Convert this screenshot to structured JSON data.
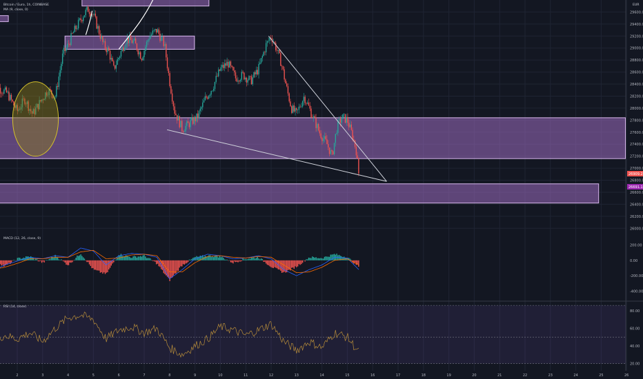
{
  "header": {
    "symbol": "Bitcoin / Euro, 1h, COINBASE",
    "ma_label": "MA (9, close, 0)",
    "currency": "EUR",
    "macd_label": "MACD (12, 26, close, 9)",
    "rsi_label": "RSI (14, close)"
  },
  "chart_data": [
    {
      "type": "candlestick",
      "title": "",
      "price_axis_ticks": [
        "29600.00",
        "29400.00",
        "29200.00",
        "29000.00",
        "28800.00",
        "28600.00",
        "28400.00",
        "28200.00",
        "28000.00",
        "27800.00",
        "27600.00",
        "27400.00",
        "27200.00",
        "27000.00",
        "26800.00",
        "26600.00",
        "26400.00",
        "26200.00",
        "26000.00"
      ],
      "ylim": [
        25900,
        29800
      ],
      "x_ticks": [
        "2",
        "3",
        "4",
        "5",
        "6",
        "7",
        "8",
        "9",
        "10",
        "11",
        "12",
        "13",
        "14",
        "15",
        "16",
        "17",
        "18",
        "19",
        "20",
        "21",
        "22",
        "23",
        "24",
        "25",
        "26"
      ],
      "last_price_label": "26909.27",
      "last_price": 26909.27,
      "secondary_price_label": "26691.13",
      "secondary_price": 26691.13,
      "colors": {
        "up": "#26a69a",
        "down": "#ef5350",
        "zone": "#9c6bbf",
        "ellipse": "#d4c12a",
        "trendline": "#d1d4dc"
      },
      "zones": [
        {
          "from_day": 4.55,
          "to_day": 9.55,
          "y_low": 29700,
          "y_high": 29880
        },
        {
          "from_day": 1.0,
          "to_day": 1.65,
          "y_low": 29440,
          "y_high": 29540
        },
        {
          "from_day": 3.88,
          "to_day": 8.98,
          "y_low": 28980,
          "y_high": 29200
        },
        {
          "from_day": 1.0,
          "to_day": 26.0,
          "y_low": 27160,
          "y_high": 27840
        },
        {
          "from_day": 1.0,
          "to_day": 24.9,
          "y_low": 26420,
          "y_high": 26740
        }
      ],
      "ellipse": {
        "center_day": 2.72,
        "center_price": 27820,
        "day_radius": 0.9,
        "price_radius": 620
      },
      "trendlines": [
        {
          "from_day": 7.9,
          "from_price": 27640,
          "to_day": 16.55,
          "to_price": 26780
        },
        {
          "from_day": 11.9,
          "from_price": 29200,
          "to_day": 16.55,
          "to_price": 26780
        }
      ],
      "series": [
        {
          "name": "",
          "anchors": [
            [
              1.0,
              28400
            ],
            [
              1.6,
              28250
            ],
            [
              2.0,
              27950
            ],
            [
              2.3,
              28150
            ],
            [
              2.6,
              27900
            ],
            [
              2.9,
              28100
            ],
            [
              3.2,
              28300
            ],
            [
              3.5,
              28200
            ],
            [
              3.8,
              28900
            ],
            [
              4.0,
              29050
            ],
            [
              4.2,
              29250
            ],
            [
              4.4,
              29400
            ],
            [
              4.6,
              29550
            ],
            [
              4.8,
              29650
            ],
            [
              5.0,
              29550
            ],
            [
              5.2,
              29300
            ],
            [
              5.4,
              29050
            ],
            [
              5.6,
              28950
            ],
            [
              5.8,
              28650
            ],
            [
              6.0,
              28850
            ],
            [
              6.3,
              29150
            ],
            [
              6.6,
              29100
            ],
            [
              6.9,
              28850
            ],
            [
              7.2,
              29200
            ],
            [
              7.5,
              29300
            ],
            [
              7.8,
              29050
            ],
            [
              8.0,
              28450
            ],
            [
              8.2,
              27950
            ],
            [
              8.5,
              27650
            ],
            [
              8.8,
              27750
            ],
            [
              9.1,
              27850
            ],
            [
              9.4,
              28150
            ],
            [
              9.7,
              28350
            ],
            [
              10.0,
              28650
            ],
            [
              10.3,
              28750
            ],
            [
              10.6,
              28500
            ],
            [
              10.9,
              28550
            ],
            [
              11.2,
              28450
            ],
            [
              11.5,
              28650
            ],
            [
              11.8,
              29050
            ],
            [
              12.0,
              29200
            ],
            [
              12.2,
              29000
            ],
            [
              12.4,
              28750
            ],
            [
              12.6,
              28350
            ],
            [
              12.8,
              28000
            ],
            [
              13.0,
              27900
            ],
            [
              13.3,
              28200
            ],
            [
              13.6,
              27900
            ],
            [
              13.9,
              27600
            ],
            [
              14.2,
              27400
            ],
            [
              14.4,
              27200
            ],
            [
              14.6,
              27700
            ],
            [
              14.8,
              27850
            ],
            [
              15.0,
              27800
            ],
            [
              15.2,
              27550
            ],
            [
              15.35,
              27300
            ],
            [
              15.45,
              26909
            ]
          ]
        }
      ]
    },
    {
      "type": "histogram",
      "title": "",
      "ticks": [
        "200.00",
        "0.00",
        "-200.00",
        "-400.00"
      ],
      "ylim": [
        -520,
        320
      ],
      "series": [
        {
          "name": "histogram",
          "anchors": [
            [
              1.0,
              40
            ],
            [
              1.5,
              -80
            ],
            [
              2.0,
              20
            ],
            [
              2.5,
              50
            ],
            [
              3.0,
              -30
            ],
            [
              3.5,
              60
            ],
            [
              4.0,
              -60
            ],
            [
              4.5,
              90
            ],
            [
              5.0,
              -120
            ],
            [
              5.5,
              -180
            ],
            [
              6.0,
              80
            ],
            [
              6.5,
              40
            ],
            [
              7.0,
              60
            ],
            [
              7.5,
              -40
            ],
            [
              8.0,
              -260
            ],
            [
              8.5,
              -60
            ],
            [
              9.0,
              40
            ],
            [
              9.5,
              60
            ],
            [
              10.0,
              50
            ],
            [
              10.5,
              -30
            ],
            [
              11.0,
              20
            ],
            [
              11.5,
              40
            ],
            [
              12.0,
              -80
            ],
            [
              12.5,
              -160
            ],
            [
              13.0,
              -80
            ],
            [
              13.5,
              40
            ],
            [
              14.0,
              30
            ],
            [
              14.5,
              80
            ],
            [
              15.0,
              40
            ],
            [
              15.45,
              -80
            ]
          ]
        },
        {
          "name": "macd",
          "anchors": [
            [
              1.0,
              -150
            ],
            [
              1.5,
              -60
            ],
            [
              2.0,
              -10
            ],
            [
              2.5,
              40
            ],
            [
              3.0,
              20
            ],
            [
              3.5,
              60
            ],
            [
              4.0,
              40
            ],
            [
              4.5,
              160
            ],
            [
              5.0,
              120
            ],
            [
              5.5,
              -60
            ],
            [
              6.0,
              60
            ],
            [
              6.5,
              90
            ],
            [
              7.0,
              80
            ],
            [
              7.5,
              40
            ],
            [
              8.0,
              -240
            ],
            [
              8.5,
              -120
            ],
            [
              9.0,
              20
            ],
            [
              9.5,
              80
            ],
            [
              10.0,
              60
            ],
            [
              10.5,
              20
            ],
            [
              11.0,
              30
            ],
            [
              11.5,
              60
            ],
            [
              12.0,
              20
            ],
            [
              12.5,
              -120
            ],
            [
              13.0,
              -200
            ],
            [
              13.5,
              -120
            ],
            [
              14.0,
              -60
            ],
            [
              14.5,
              40
            ],
            [
              15.0,
              30
            ],
            [
              15.45,
              -120
            ]
          ]
        },
        {
          "name": "signal",
          "anchors": [
            [
              1.0,
              -120
            ],
            [
              1.5,
              -90
            ],
            [
              2.0,
              -40
            ],
            [
              2.5,
              20
            ],
            [
              3.0,
              20
            ],
            [
              3.5,
              40
            ],
            [
              4.0,
              40
            ],
            [
              4.5,
              110
            ],
            [
              5.0,
              130
            ],
            [
              5.5,
              20
            ],
            [
              6.0,
              30
            ],
            [
              6.5,
              70
            ],
            [
              7.0,
              80
            ],
            [
              7.5,
              60
            ],
            [
              8.0,
              -150
            ],
            [
              8.5,
              -150
            ],
            [
              9.0,
              -30
            ],
            [
              9.5,
              50
            ],
            [
              10.0,
              60
            ],
            [
              10.5,
              40
            ],
            [
              11.0,
              30
            ],
            [
              11.5,
              50
            ],
            [
              12.0,
              40
            ],
            [
              12.5,
              -60
            ],
            [
              13.0,
              -160
            ],
            [
              13.5,
              -150
            ],
            [
              14.0,
              -90
            ],
            [
              14.5,
              0
            ],
            [
              15.0,
              20
            ],
            [
              15.45,
              -60
            ]
          ]
        }
      ],
      "colors": {
        "hist_up": "#26a69a",
        "hist_down": "#ef5350",
        "macd": "#2962ff",
        "signal": "#ff6d00"
      }
    },
    {
      "type": "line",
      "title": "",
      "ticks": [
        "80.00",
        "60.00",
        "40.00",
        "20.00"
      ],
      "ylim": [
        15,
        90
      ],
      "levels": [
        70,
        30
      ],
      "series": [
        {
          "name": "",
          "anchors": [
            [
              1.0,
              45
            ],
            [
              1.5,
              52
            ],
            [
              2.0,
              48
            ],
            [
              2.5,
              55
            ],
            [
              3.0,
              45
            ],
            [
              3.5,
              60
            ],
            [
              4.0,
              72
            ],
            [
              4.5,
              75
            ],
            [
              5.0,
              70
            ],
            [
              5.5,
              48
            ],
            [
              6.0,
              58
            ],
            [
              6.5,
              62
            ],
            [
              7.0,
              55
            ],
            [
              7.5,
              60
            ],
            [
              8.0,
              38
            ],
            [
              8.5,
              30
            ],
            [
              9.0,
              40
            ],
            [
              9.5,
              48
            ],
            [
              10.0,
              62
            ],
            [
              10.5,
              58
            ],
            [
              11.0,
              52
            ],
            [
              11.5,
              58
            ],
            [
              12.0,
              65
            ],
            [
              12.5,
              45
            ],
            [
              13.0,
              35
            ],
            [
              13.5,
              45
            ],
            [
              14.0,
              38
            ],
            [
              14.5,
              55
            ],
            [
              15.0,
              50
            ],
            [
              15.45,
              33
            ]
          ]
        }
      ],
      "colors": {
        "line": "#b98e3a",
        "band": "#7e57c2"
      }
    }
  ]
}
